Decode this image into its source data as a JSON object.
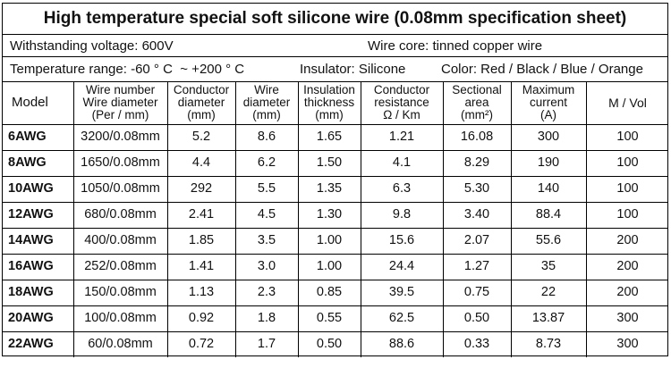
{
  "title": "High temperature special soft silicone wire (0.08mm specification sheet)",
  "info": [
    [
      "Withstanding voltage: 600V",
      "Wire core: tinned copper wire"
    ],
    [
      "Temperature range: -60 ° C  ~ +200 ° C",
      "Insulator: Silicone",
      "Color: Red / Black / Blue / Orange"
    ]
  ],
  "table": {
    "headers": [
      [
        "Model"
      ],
      [
        "Wire number",
        "Wire diameter",
        "(Per / mm)"
      ],
      [
        "Conductor",
        "diameter",
        "(mm)"
      ],
      [
        "Wire",
        "diameter",
        "(mm)"
      ],
      [
        "Insulation",
        "thickness",
        "(mm)"
      ],
      [
        "Conductor",
        "resistance",
        "Ω / Km"
      ],
      [
        "Sectional",
        "area",
        "(mm²)"
      ],
      [
        "Maximum",
        "current",
        "(A)"
      ],
      [
        "M / Vol"
      ]
    ],
    "rows": [
      [
        "6AWG",
        "3200/0.08mm",
        "5.2",
        "8.6",
        "1.65",
        "1.21",
        "16.08",
        "300",
        "100"
      ],
      [
        "8AWG",
        "1650/0.08mm",
        "4.4",
        "6.2",
        "1.50",
        "4.1",
        "8.29",
        "190",
        "100"
      ],
      [
        "10AWG",
        "1050/0.08mm",
        "292",
        "5.5",
        "1.35",
        "6.3",
        "5.30",
        "140",
        "100"
      ],
      [
        "12AWG",
        "680/0.08mm",
        "2.41",
        "4.5",
        "1.30",
        "9.8",
        "3.40",
        "88.4",
        "100"
      ],
      [
        "14AWG",
        "400/0.08mm",
        "1.85",
        "3.5",
        "1.00",
        "15.6",
        "2.07",
        "55.6",
        "200"
      ],
      [
        "16AWG",
        "252/0.08mm",
        "1.41",
        "3.0",
        "1.00",
        "24.4",
        "1.27",
        "35",
        "200"
      ],
      [
        "18AWG",
        "150/0.08mm",
        "1.13",
        "2.3",
        "0.85",
        "39.5",
        "0.75",
        "22",
        "200"
      ],
      [
        "20AWG",
        "100/0.08mm",
        "0.92",
        "1.8",
        "0.55",
        "62.5",
        "0.50",
        "13.87",
        "300"
      ],
      [
        "22AWG",
        "60/0.08mm",
        "0.72",
        "1.7",
        "0.50",
        "88.6",
        "0.33",
        "8.73",
        "300"
      ]
    ]
  }
}
